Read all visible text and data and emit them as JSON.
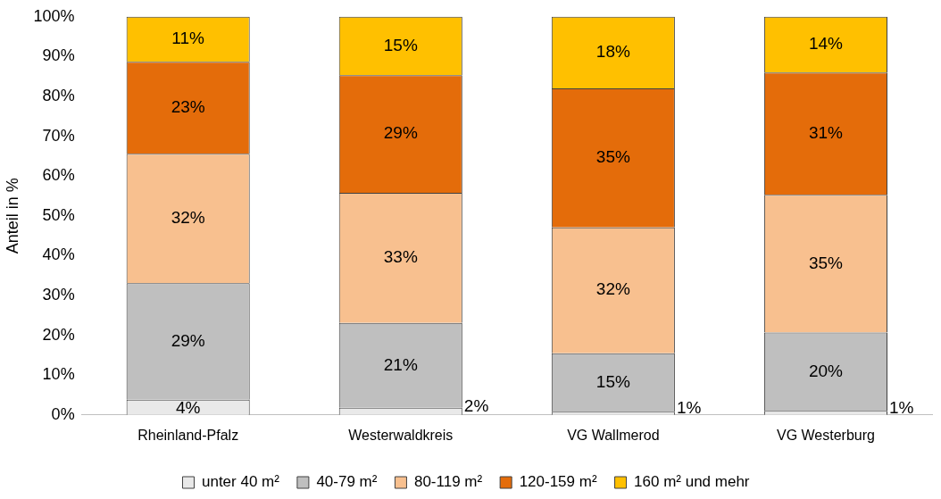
{
  "chart_data": {
    "type": "bar",
    "stacked": true,
    "ylabel": "Anteil in %",
    "categories": [
      "Rheinland-Pfalz",
      "Westerwaldkreis",
      "VG Wallmerod",
      "VG Westerburg"
    ],
    "series": [
      {
        "name": "unter 40 m²",
        "color": "#e9e9e9",
        "values": [
          3.8,
          1.8,
          0.8,
          1.0
        ],
        "value_labels": [
          "4%",
          "2%",
          "1%",
          "1%"
        ]
      },
      {
        "name": "40-79 m²",
        "color": "#bfbfbf",
        "values": [
          29.3,
          21.3,
          14.7,
          19.7
        ],
        "value_labels": [
          "29%",
          "21%",
          "15%",
          "20%"
        ]
      },
      {
        "name": "80-119 m²",
        "color": "#f8c08f",
        "values": [
          32.5,
          32.7,
          31.6,
          34.6
        ],
        "value_labels": [
          "32%",
          "33%",
          "32%",
          "35%"
        ]
      },
      {
        "name": "120-159 m²",
        "color": "#e46c0a",
        "values": [
          23.1,
          29.5,
          34.9,
          30.7
        ],
        "value_labels": [
          "23%",
          "29%",
          "35%",
          "31%"
        ]
      },
      {
        "name": "160 m² und mehr",
        "color": "#ffc000",
        "values": [
          11.3,
          14.7,
          18.0,
          14.0
        ],
        "value_labels": [
          "11%",
          "15%",
          "18%",
          "14%"
        ]
      }
    ],
    "ylim": [
      0,
      100
    ],
    "yticks": [
      {
        "value": 0,
        "label": "0%"
      },
      {
        "value": 10,
        "label": "10%"
      },
      {
        "value": 20,
        "label": "20%"
      },
      {
        "value": 30,
        "label": "30%"
      },
      {
        "value": 40,
        "label": "40%"
      },
      {
        "value": 50,
        "label": "50%"
      },
      {
        "value": 60,
        "label": "60%"
      },
      {
        "value": 70,
        "label": "70%"
      },
      {
        "value": 80,
        "label": "80%"
      },
      {
        "value": 90,
        "label": "90%"
      },
      {
        "value": 100,
        "label": "100%"
      }
    ],
    "legend": "bottom"
  }
}
